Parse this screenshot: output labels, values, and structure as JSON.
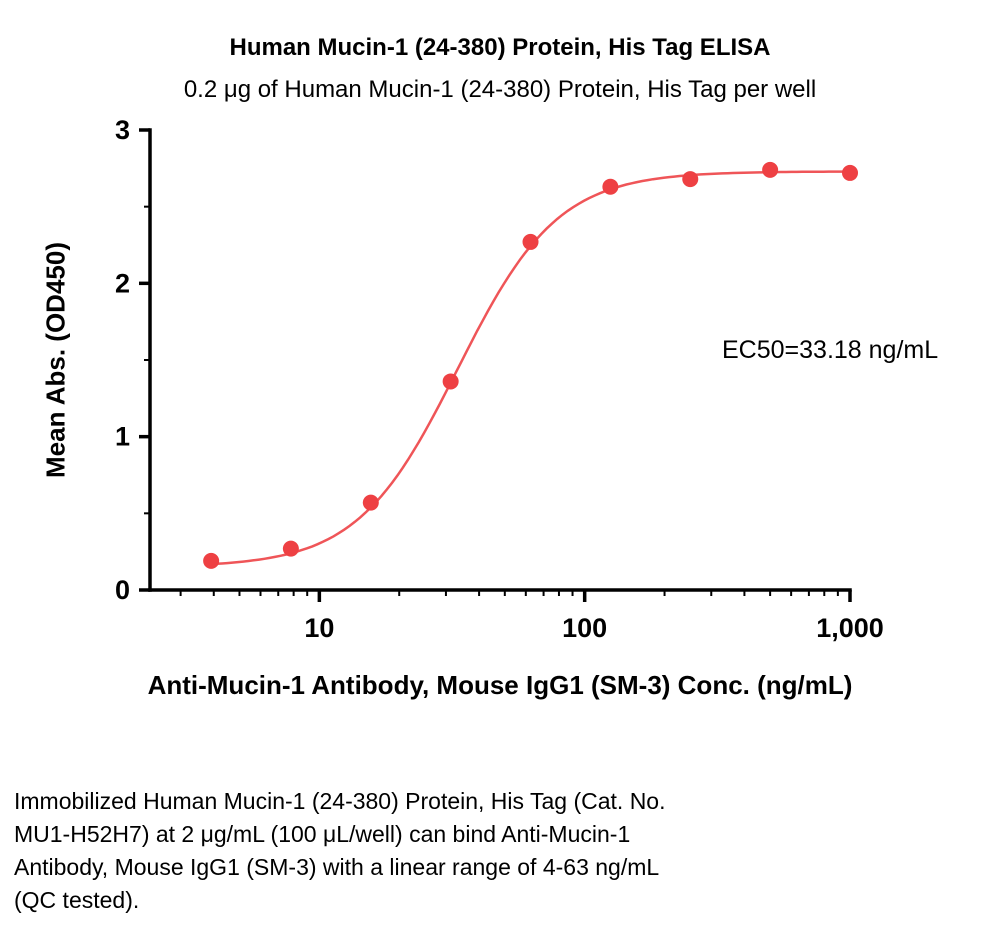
{
  "chart_data": {
    "type": "line",
    "title": "Human Mucin-1 (24-380) Protein, His Tag ELISA",
    "subtitle": "0.2 μg of Human Mucin-1 (24-380) Protein, His Tag per well",
    "xlabel": "Anti-Mucin-1 Antibody, Mouse IgG1 (SM-3) Conc. (ng/mL)",
    "ylabel": "Mean Abs. (OD450)",
    "annotation": "EC50=33.18 ng/mL",
    "x_scale": "log10",
    "xlim": [
      2.3,
      1000
    ],
    "ylim": [
      0,
      3
    ],
    "xtick_values": [
      10,
      100,
      1000
    ],
    "xtick_labels": [
      "10",
      "100",
      "1,000"
    ],
    "ytick_values": [
      0,
      1,
      2,
      3
    ],
    "ytick_minor": [
      0.5,
      1.5,
      2.5
    ],
    "x": [
      3.91,
      7.81,
      15.63,
      31.25,
      62.5,
      125,
      250,
      500,
      1000
    ],
    "y": [
      0.19,
      0.27,
      0.57,
      1.36,
      2.27,
      2.63,
      2.68,
      2.74,
      2.72
    ],
    "fit": {
      "model": "4PL",
      "bottom": 0.15,
      "top": 2.73,
      "ec50": 33.18,
      "hill": 2.3
    },
    "curve_range": [
      3.91,
      1000
    ],
    "colors": {
      "points": "#ee4043",
      "line": "#ef5558",
      "axis": "#000000"
    },
    "legend": "none",
    "grid": false
  },
  "caption": {
    "lines": [
      "Immobilized Human Mucin-1 (24-380) Protein, His Tag (Cat. No.",
      "MU1-H52H7) at 2 μg/mL (100 μL/well) can bind Anti-Mucin-1",
      "Antibody, Mouse IgG1 (SM-3) with a linear range of 4-63 ng/mL",
      "(QC tested)."
    ]
  }
}
